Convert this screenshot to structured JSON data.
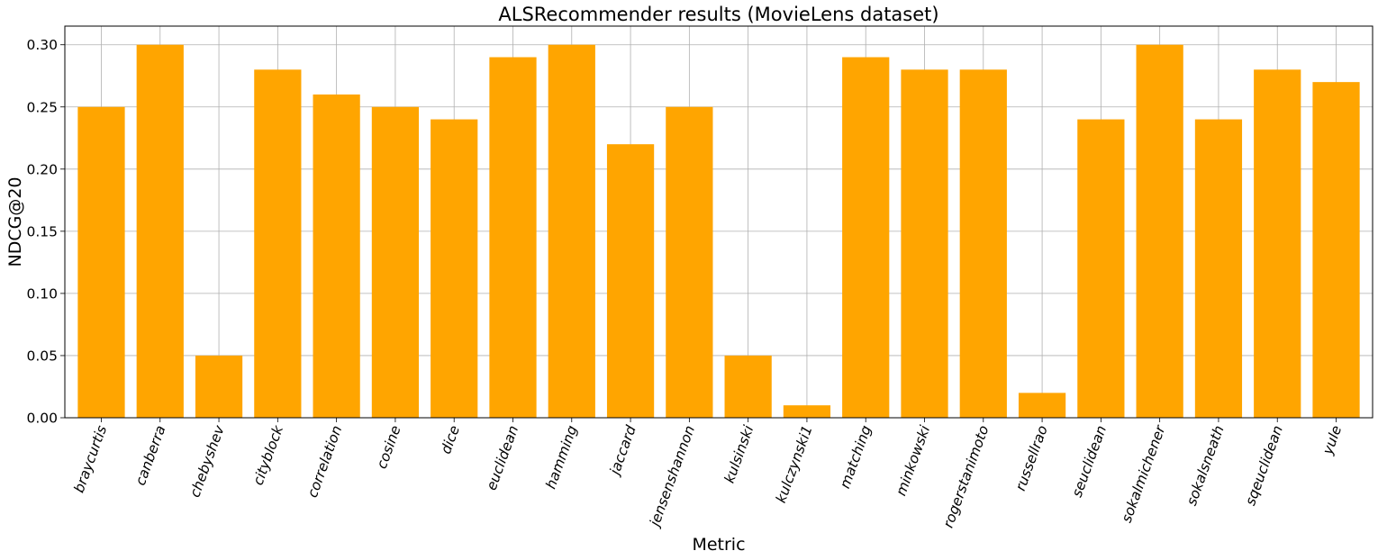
{
  "chart_data": {
    "type": "bar",
    "title": "ALSRecommender results (MovieLens dataset)",
    "xlabel": "Metric",
    "ylabel": "NDCG@20",
    "categories": [
      "braycurtis",
      "canberra",
      "chebyshev",
      "cityblock",
      "correlation",
      "cosine",
      "dice",
      "euclidean",
      "hamming",
      "jaccard",
      "jensenshannon",
      "kulsinski",
      "kulczynski1",
      "matching",
      "minkowski",
      "rogerstanimoto",
      "russellrao",
      "seuclidean",
      "sokalmichener",
      "sokalsneath",
      "sqeuclidean",
      "yule"
    ],
    "values": [
      0.25,
      0.3,
      0.05,
      0.28,
      0.26,
      0.25,
      0.24,
      0.29,
      0.3,
      0.22,
      0.25,
      0.05,
      0.01,
      0.29,
      0.28,
      0.28,
      0.02,
      0.24,
      0.3,
      0.24,
      0.28,
      0.27
    ],
    "ylim": [
      0,
      0.315
    ],
    "yticks": [
      "0.00",
      "0.05",
      "0.10",
      "0.15",
      "0.20",
      "0.25",
      "0.30"
    ],
    "grid": true,
    "bar_color": "#ffa500",
    "x_tick_rotation_deg": 70
  }
}
